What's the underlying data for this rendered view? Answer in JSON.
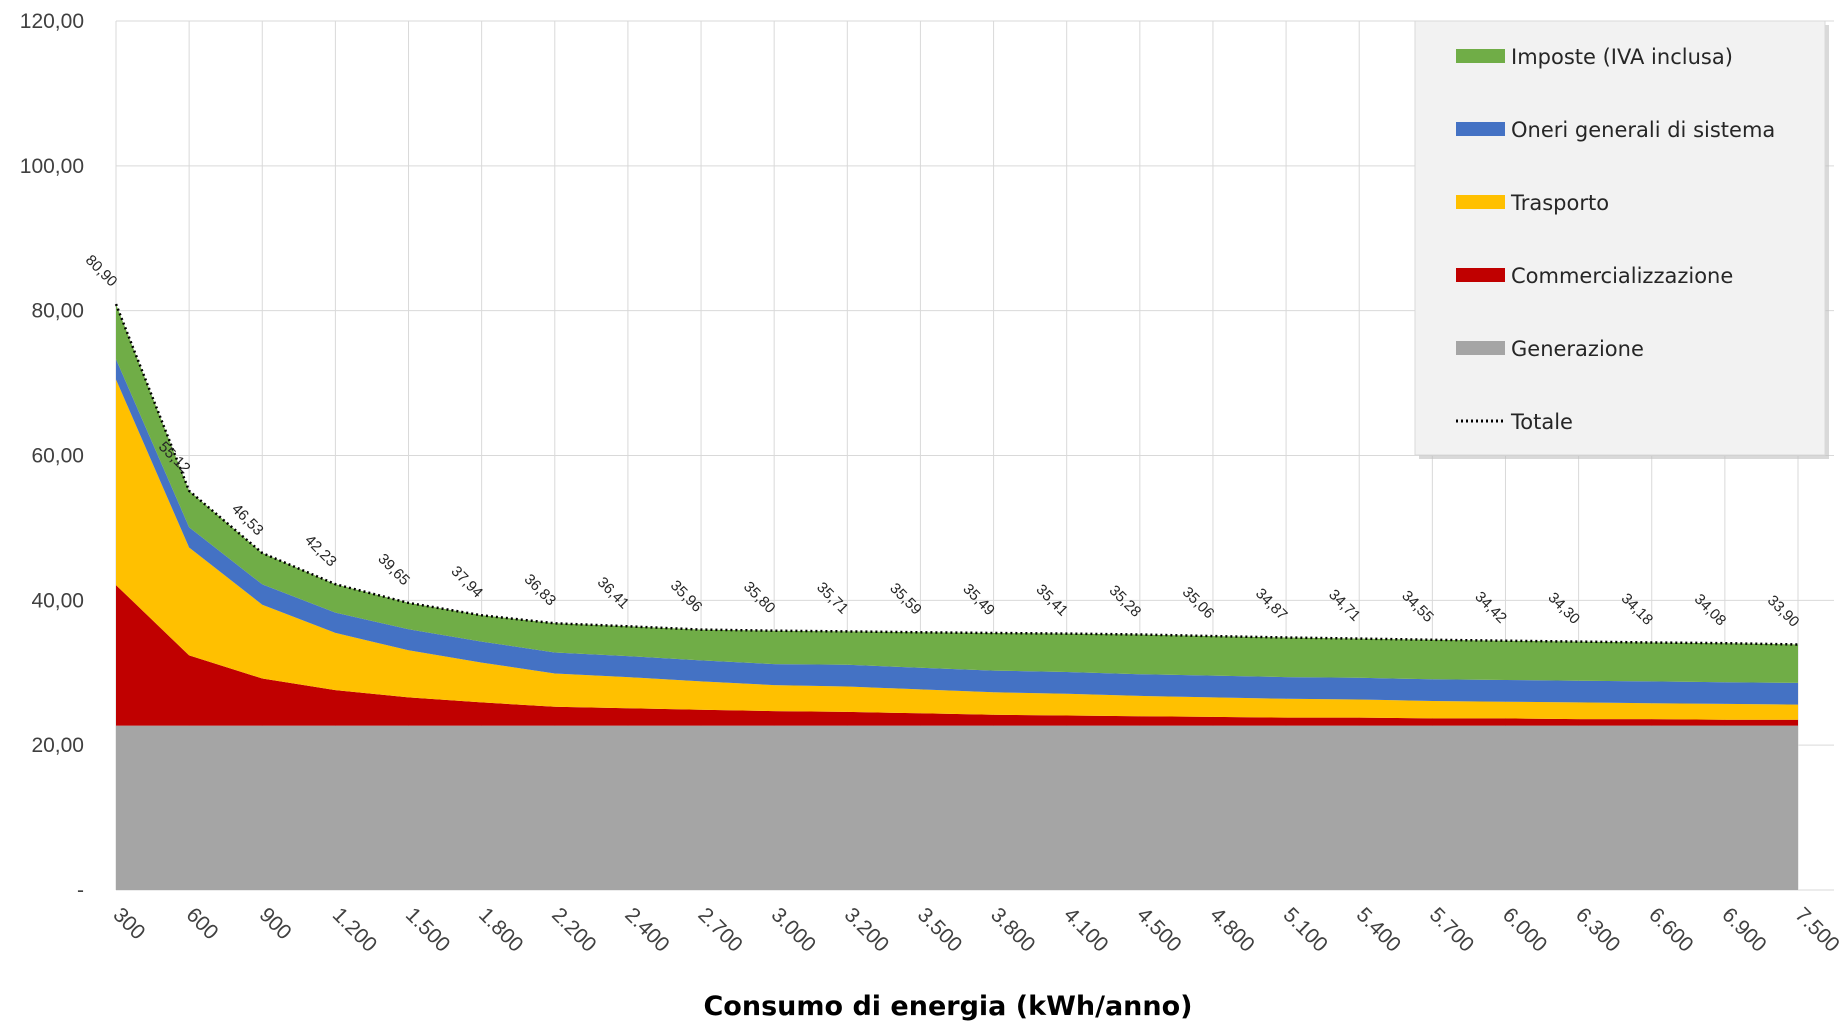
{
  "chart_data": {
    "type": "area",
    "stacked": true,
    "xlabel": "Consumo di energia (kWh/anno)",
    "ylabel": "",
    "ylim": [
      0,
      120
    ],
    "yticks": [
      {
        "value": 0,
        "label": "-"
      },
      {
        "value": 20,
        "label": "20,00"
      },
      {
        "value": 40,
        "label": "40,00"
      },
      {
        "value": 60,
        "label": "60,00"
      },
      {
        "value": 80,
        "label": "80,00"
      },
      {
        "value": 100,
        "label": "100,00"
      },
      {
        "value": 120,
        "label": "120,00"
      }
    ],
    "grid": true,
    "legend_position": "top-right",
    "categories": [
      "300",
      "600",
      "900",
      "1.200",
      "1.500",
      "1.800",
      "2.200",
      "2.400",
      "2.700",
      "3.000",
      "3.200",
      "3.500",
      "3.800",
      "4.100",
      "4.500",
      "4.800",
      "5.100",
      "5.400",
      "5.700",
      "6.000",
      "6.300",
      "6.600",
      "6.900",
      "7.500"
    ],
    "series": [
      {
        "name": "Generazione",
        "color": "#a5a5a5",
        "values": [
          22.7,
          22.7,
          22.7,
          22.7,
          22.7,
          22.7,
          22.7,
          22.7,
          22.7,
          22.7,
          22.7,
          22.7,
          22.7,
          22.7,
          22.7,
          22.7,
          22.7,
          22.7,
          22.7,
          22.7,
          22.7,
          22.7,
          22.7,
          22.7
        ]
      },
      {
        "name": "Commercializzazione",
        "color": "#c00000",
        "values": [
          19.4,
          9.7,
          6.5,
          4.9,
          3.9,
          3.2,
          2.6,
          2.4,
          2.2,
          2.0,
          1.9,
          1.7,
          1.5,
          1.4,
          1.3,
          1.2,
          1.1,
          1.1,
          1.0,
          1.0,
          0.9,
          0.9,
          0.8,
          0.8
        ]
      },
      {
        "name": "Trasporto",
        "color": "#ffc000",
        "values": [
          28.4,
          14.9,
          10.2,
          7.9,
          6.5,
          5.5,
          4.6,
          4.3,
          3.9,
          3.6,
          3.5,
          3.3,
          3.1,
          3.0,
          2.8,
          2.7,
          2.6,
          2.5,
          2.4,
          2.3,
          2.3,
          2.2,
          2.2,
          2.1
        ]
      },
      {
        "name": "Oneri generali di sistema",
        "color": "#4472c4",
        "values": [
          2.8,
          2.8,
          2.8,
          2.8,
          2.9,
          2.9,
          2.9,
          2.9,
          2.9,
          2.9,
          3.0,
          3.0,
          3.0,
          3.0,
          3.0,
          3.0,
          3.0,
          3.0,
          3.0,
          3.0,
          3.0,
          3.0,
          3.0,
          3.0
        ]
      },
      {
        "name": "Imposte (IVA inclusa)",
        "color": "#70ad47",
        "values": [
          7.6,
          5.02,
          4.33,
          3.93,
          3.65,
          3.64,
          4.03,
          4.11,
          4.26,
          4.6,
          4.61,
          4.89,
          5.19,
          5.31,
          5.48,
          5.46,
          5.47,
          5.41,
          5.45,
          5.42,
          5.4,
          5.38,
          5.38,
          5.3
        ]
      }
    ],
    "total": {
      "name": "Totale",
      "style": "dotted",
      "color": "#000000",
      "values": [
        80.9,
        55.12,
        46.53,
        42.23,
        39.65,
        37.94,
        36.83,
        36.41,
        35.96,
        35.8,
        35.71,
        35.59,
        35.49,
        35.41,
        35.28,
        35.06,
        34.87,
        34.71,
        34.55,
        34.42,
        34.3,
        34.18,
        34.08,
        33.9
      ],
      "labels": [
        "80,90",
        "55,12",
        "46,53",
        "42,23",
        "39,65",
        "37,94",
        "36,83",
        "36,41",
        "35,96",
        "35,80",
        "35,71",
        "35,59",
        "35,49",
        "35,41",
        "35,28",
        "35,06",
        "34,87",
        "34,71",
        "34,55",
        "34,42",
        "34,30",
        "34,18",
        "34,08",
        "33,90"
      ]
    },
    "legend_order": [
      "Imposte (IVA inclusa)",
      "Oneri generali di sistema",
      "Trasporto",
      "Commercializzazione",
      "Generazione",
      "Totale"
    ]
  }
}
